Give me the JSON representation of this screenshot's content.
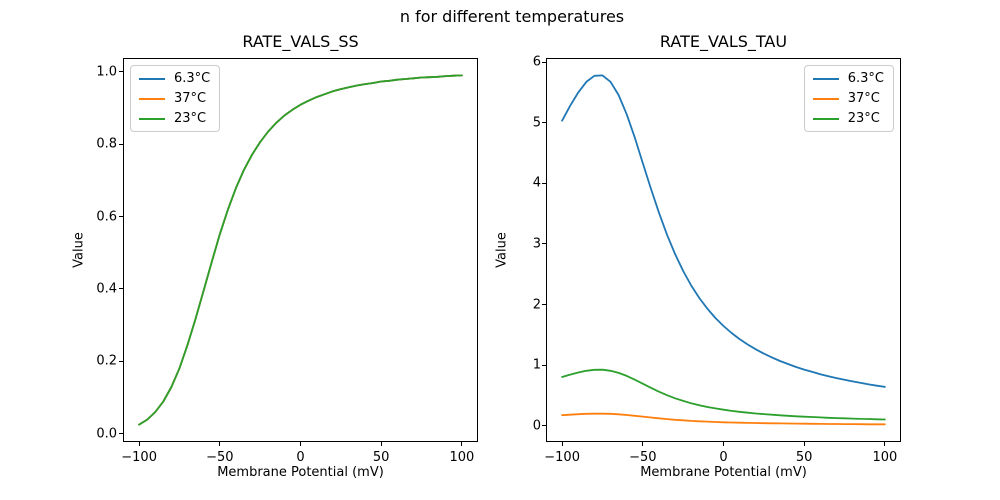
{
  "figure": {
    "title": "n for different temperatures",
    "background": "#ffffff",
    "text_color": "#000000",
    "spine_color": "#000000"
  },
  "chart_data": [
    {
      "type": "line",
      "title": "RATE_VALS_SS",
      "xlabel": "Membrane Potential (mV)",
      "ylabel": "Value",
      "grid": false,
      "legend_position": "upper-left",
      "xlim": [
        -110,
        110
      ],
      "ylim": [
        -0.023,
        1.038
      ],
      "xticks": [
        -100,
        -50,
        0,
        50,
        100
      ],
      "xtick_labels": [
        "−100",
        "−50",
        "0",
        "50",
        "100"
      ],
      "yticks": [
        0,
        0.2,
        0.4,
        0.6,
        0.8,
        1.0
      ],
      "ytick_labels": [
        "0.0",
        "0.2",
        "0.4",
        "0.6",
        "0.8",
        "1.0"
      ],
      "x": [
        -100,
        -95,
        -90,
        -85,
        -80,
        -75,
        -70,
        -65,
        -60,
        -55,
        -50,
        -45,
        -40,
        -35,
        -30,
        -25,
        -20,
        -15,
        -10,
        -5,
        0,
        5,
        10,
        15,
        20,
        25,
        30,
        35,
        40,
        45,
        50,
        55,
        60,
        65,
        70,
        75,
        80,
        85,
        90,
        95,
        100
      ],
      "series": [
        {
          "name": "6.3°C",
          "color": "#1f77b4",
          "values": [
            0.025,
            0.039,
            0.06,
            0.089,
            0.129,
            0.181,
            0.245,
            0.318,
            0.396,
            0.475,
            0.551,
            0.619,
            0.679,
            0.729,
            0.771,
            0.806,
            0.835,
            0.859,
            0.879,
            0.895,
            0.909,
            0.92,
            0.93,
            0.938,
            0.946,
            0.952,
            0.957,
            0.962,
            0.966,
            0.969,
            0.973,
            0.975,
            0.978,
            0.98,
            0.982,
            0.984,
            0.985,
            0.986,
            0.988,
            0.989,
            0.99
          ]
        },
        {
          "name": "37°C",
          "color": "#ff7f0e",
          "values": [
            0.025,
            0.039,
            0.06,
            0.089,
            0.129,
            0.181,
            0.245,
            0.318,
            0.396,
            0.475,
            0.551,
            0.619,
            0.679,
            0.729,
            0.771,
            0.806,
            0.835,
            0.859,
            0.879,
            0.895,
            0.909,
            0.92,
            0.93,
            0.938,
            0.946,
            0.952,
            0.957,
            0.962,
            0.966,
            0.969,
            0.973,
            0.975,
            0.978,
            0.98,
            0.982,
            0.984,
            0.985,
            0.986,
            0.988,
            0.989,
            0.99
          ]
        },
        {
          "name": "23°C",
          "color": "#2ca02c",
          "values": [
            0.025,
            0.039,
            0.06,
            0.089,
            0.129,
            0.181,
            0.245,
            0.318,
            0.396,
            0.475,
            0.551,
            0.619,
            0.679,
            0.729,
            0.771,
            0.806,
            0.835,
            0.859,
            0.879,
            0.895,
            0.909,
            0.92,
            0.93,
            0.938,
            0.946,
            0.952,
            0.957,
            0.962,
            0.966,
            0.969,
            0.973,
            0.975,
            0.978,
            0.98,
            0.982,
            0.984,
            0.985,
            0.986,
            0.988,
            0.989,
            0.99
          ]
        }
      ]
    },
    {
      "type": "line",
      "title": "RATE_VALS_TAU",
      "xlabel": "Membrane Potential (mV)",
      "ylabel": "Value",
      "grid": false,
      "legend_position": "upper-right",
      "xlim": [
        -110,
        110
      ],
      "ylim": [
        -0.27,
        6.07
      ],
      "xticks": [
        -100,
        -50,
        0,
        50,
        100
      ],
      "xtick_labels": [
        "−100",
        "−50",
        "0",
        "50",
        "100"
      ],
      "yticks": [
        0,
        1,
        2,
        3,
        4,
        5,
        6
      ],
      "ytick_labels": [
        "0",
        "1",
        "2",
        "3",
        "4",
        "5",
        "6"
      ],
      "x": [
        -100,
        -95,
        -90,
        -85,
        -80,
        -75,
        -70,
        -65,
        -60,
        -55,
        -50,
        -45,
        -40,
        -35,
        -30,
        -25,
        -20,
        -15,
        -10,
        -5,
        0,
        5,
        10,
        15,
        20,
        25,
        30,
        35,
        40,
        45,
        50,
        55,
        60,
        65,
        70,
        75,
        80,
        85,
        90,
        95,
        100
      ],
      "series": [
        {
          "name": "6.3°C",
          "color": "#1f77b4",
          "values": [
            5.034,
            5.282,
            5.502,
            5.675,
            5.776,
            5.782,
            5.677,
            5.459,
            5.141,
            4.755,
            4.335,
            3.913,
            3.514,
            3.152,
            2.832,
            2.554,
            2.314,
            2.108,
            1.931,
            1.778,
            1.645,
            1.53,
            1.429,
            1.339,
            1.26,
            1.189,
            1.126,
            1.068,
            1.017,
            0.969,
            0.926,
            0.887,
            0.85,
            0.817,
            0.785,
            0.757,
            0.73,
            0.705,
            0.681,
            0.659,
            0.639
          ]
        },
        {
          "name": "37°C",
          "color": "#ff7f0e",
          "values": [
            0.173,
            0.181,
            0.189,
            0.195,
            0.198,
            0.198,
            0.195,
            0.187,
            0.176,
            0.163,
            0.149,
            0.134,
            0.121,
            0.108,
            0.097,
            0.088,
            0.079,
            0.072,
            0.066,
            0.061,
            0.056,
            0.052,
            0.049,
            0.046,
            0.043,
            0.041,
            0.039,
            0.037,
            0.035,
            0.033,
            0.032,
            0.03,
            0.029,
            0.028,
            0.027,
            0.026,
            0.025,
            0.024,
            0.023,
            0.023,
            0.022
          ]
        },
        {
          "name": "23°C",
          "color": "#2ca02c",
          "values": [
            0.804,
            0.843,
            0.878,
            0.906,
            0.922,
            0.923,
            0.906,
            0.871,
            0.821,
            0.759,
            0.692,
            0.625,
            0.561,
            0.503,
            0.452,
            0.408,
            0.369,
            0.337,
            0.308,
            0.284,
            0.263,
            0.244,
            0.228,
            0.214,
            0.201,
            0.19,
            0.18,
            0.171,
            0.162,
            0.155,
            0.148,
            0.142,
            0.136,
            0.13,
            0.125,
            0.121,
            0.117,
            0.112,
            0.109,
            0.105,
            0.102
          ]
        }
      ]
    }
  ]
}
